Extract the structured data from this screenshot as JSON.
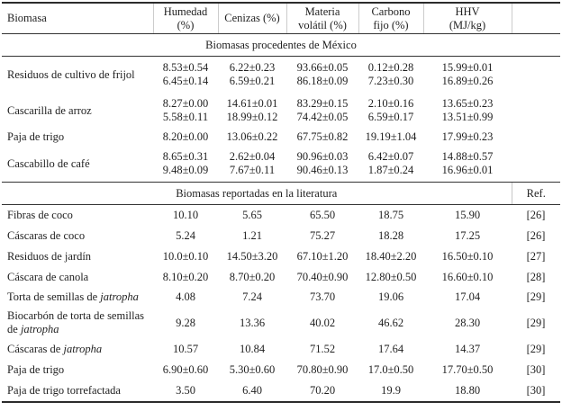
{
  "table": {
    "header": {
      "biomasa": "Biomasa",
      "humedad": [
        "Humedad",
        "(%)"
      ],
      "cenizas": "Cenizas (%)",
      "materia": [
        "Materia",
        "volátil (%)"
      ],
      "carbono": [
        "Carbono",
        "fijo (%)"
      ],
      "hhv": [
        "HHV",
        "(MJ/kg)"
      ],
      "ref": "Ref."
    },
    "mexico": {
      "title": "Biomasas procedentes de México",
      "rows": [
        {
          "name": "Residuos de cultivo de frijol",
          "humedad": [
            "8.53±0.54",
            "6.45±0.14"
          ],
          "cenizas": [
            "6.22±0.23",
            "6.59±0.21"
          ],
          "materia": [
            "93.66±0.05",
            "86.18±0.09"
          ],
          "carbono": [
            "0.12±0.28",
            "7.23±0.30"
          ],
          "hhv": [
            "15.99±0.01",
            "16.89±0.26"
          ]
        },
        {
          "name": "Cascarilla de arroz",
          "humedad": [
            "8.27±0.00",
            "5.58±0.11"
          ],
          "cenizas": [
            "14.61±0.01",
            "18.99±0.12"
          ],
          "materia": [
            "83.29±0.15",
            "74.42±0.05"
          ],
          "carbono": [
            "2.10±0.16",
            "6.59±0.17"
          ],
          "hhv": [
            "13.65±0.23",
            "13.51±0.99"
          ]
        },
        {
          "name": "Paja de trigo",
          "humedad": [
            "8.20±0.00"
          ],
          "cenizas": [
            "13.06±0.22"
          ],
          "materia": [
            "67.75±0.82"
          ],
          "carbono": [
            "19.19±1.04"
          ],
          "hhv": [
            "17.99±0.23"
          ]
        },
        {
          "name": "Cascabillo de café",
          "humedad": [
            "8.65±0.31",
            "9.48±0.09"
          ],
          "cenizas": [
            "2.62±0.04",
            "7.67±0.11"
          ],
          "materia": [
            "90.96±0.03",
            "90.46±0.13"
          ],
          "carbono": [
            "6.42±0.07",
            "1.87±0.24"
          ],
          "hhv": [
            "14.88±0.57",
            "16.96±0.01"
          ]
        }
      ]
    },
    "literatura": {
      "title": "Biomasas reportadas en la literatura",
      "rows": [
        {
          "name": "Fibras de coco",
          "humedad": "10.10",
          "cenizas": "5.65",
          "materia": "65.50",
          "carbono": "18.75",
          "hhv": "15.90",
          "ref": "[26]"
        },
        {
          "name": "Cáscaras de coco",
          "humedad": "5.24",
          "cenizas": "1.21",
          "materia": "75.27",
          "carbono": "18.28",
          "hhv": "17.25",
          "ref": "[26]"
        },
        {
          "name": "Residuos de jardín",
          "humedad": "10.0±0.10",
          "cenizas": "14.50±3.20",
          "materia": "67.10±1.20",
          "carbono": "18.40±2.20",
          "hhv": "16.50±0.10",
          "ref": "[27]"
        },
        {
          "name": "Cáscara de canola",
          "humedad": "8.10±0.20",
          "cenizas": "8.70±0.20",
          "materia": "70.40±0.90",
          "carbono": "12.80±0.50",
          "hhv": "16.60±0.10",
          "ref": "[28]"
        },
        {
          "name_pre": "Torta de semillas de ",
          "name_it": "jatropha",
          "humedad": "4.08",
          "cenizas": "7.24",
          "materia": "73.70",
          "carbono": "19.06",
          "hhv": "17.04",
          "ref": "[29]"
        },
        {
          "name_pre": "Biocarbón de torta de semillas de ",
          "name_it": "jatropha",
          "humedad": "9.28",
          "cenizas": "13.36",
          "materia": "40.02",
          "carbono": "46.62",
          "hhv": "28.30",
          "ref": "[29]"
        },
        {
          "name_pre": "Cáscaras de ",
          "name_it": "jatropha",
          "humedad": "10.57",
          "cenizas": "10.84",
          "materia": "71.52",
          "carbono": "17.64",
          "hhv": "14.37",
          "ref": "[29]"
        },
        {
          "name": "Paja de trigo",
          "humedad": "6.90±0.60",
          "cenizas": "5.30±0.60",
          "materia": "70.80±0.90",
          "carbono": "17.0±0.50",
          "hhv": "17.70±0.50",
          "ref": "[30]"
        },
        {
          "name": "Paja de trigo torrefactada",
          "humedad": "3.50",
          "cenizas": "6.40",
          "materia": "70.20",
          "carbono": "19.9",
          "hhv": "18.80",
          "ref": "[30]"
        }
      ]
    }
  }
}
